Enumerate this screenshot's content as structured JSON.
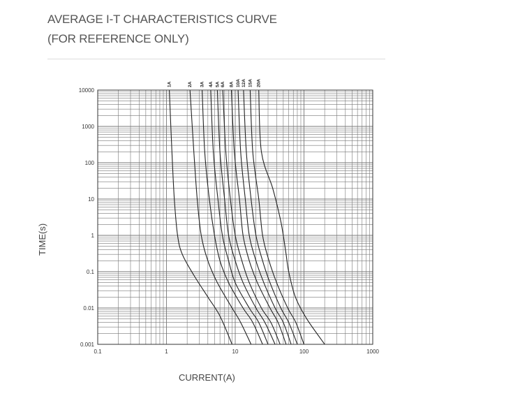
{
  "header": {
    "title_line1": "AVERAGE I-T CHARACTERISTICS CURVE",
    "title_line2": "(FOR REFERENCE ONLY)"
  },
  "chart_data": {
    "type": "line",
    "title": "AVERAGE I-T CHARACTERISTICS CURVE (FOR REFERENCE ONLY)",
    "xlabel": "CURRENT(A)",
    "ylabel": "TIME(s)",
    "xscale": "log",
    "yscale": "log",
    "xlim": [
      0.1,
      1000
    ],
    "ylim": [
      0.001,
      10000
    ],
    "x_ticks": [
      "0.1",
      "1",
      "10",
      "100",
      "1000"
    ],
    "y_ticks": [
      "0.001",
      "0.01",
      "0.1",
      "1",
      "10",
      "100",
      "1000",
      "10000"
    ],
    "grid": true,
    "line_color": "#222222",
    "grid_color": "#777777",
    "series": [
      {
        "name": "1A",
        "points": [
          [
            1.1,
            10000
          ],
          [
            1.2,
            200
          ],
          [
            1.3,
            10
          ],
          [
            1.45,
            1
          ],
          [
            1.7,
            0.3
          ],
          [
            2.5,
            0.08
          ],
          [
            4,
            0.02
          ],
          [
            6,
            0.006
          ],
          [
            9,
            0.001
          ]
        ]
      },
      {
        "name": "2A",
        "points": [
          [
            2.2,
            10000
          ],
          [
            2.5,
            200
          ],
          [
            2.8,
            10
          ],
          [
            3.2,
            1
          ],
          [
            4,
            0.2
          ],
          [
            5.5,
            0.05
          ],
          [
            9,
            0.01
          ],
          [
            12,
            0.004
          ],
          [
            17,
            0.001
          ]
        ]
      },
      {
        "name": "3A",
        "points": [
          [
            3.3,
            10000
          ],
          [
            3.6,
            200
          ],
          [
            4.2,
            10
          ],
          [
            5,
            1
          ],
          [
            6,
            0.2
          ],
          [
            8,
            0.05
          ],
          [
            13,
            0.01
          ],
          [
            18,
            0.004
          ],
          [
            25,
            0.001
          ]
        ]
      },
      {
        "name": "4A",
        "points": [
          [
            4.4,
            10000
          ],
          [
            4.8,
            200
          ],
          [
            5.6,
            10
          ],
          [
            6.5,
            1
          ],
          [
            8,
            0.2
          ],
          [
            10,
            0.05
          ],
          [
            16,
            0.01
          ],
          [
            22,
            0.004
          ],
          [
            30,
            0.001
          ]
        ]
      },
      {
        "name": "5A",
        "points": [
          [
            5.5,
            10000
          ],
          [
            6,
            200
          ],
          [
            7,
            10
          ],
          [
            8,
            1
          ],
          [
            10,
            0.2
          ],
          [
            13,
            0.05
          ],
          [
            20,
            0.01
          ],
          [
            27,
            0.004
          ],
          [
            38,
            0.001
          ]
        ]
      },
      {
        "name": "6A",
        "points": [
          [
            6.6,
            10000
          ],
          [
            7.3,
            200
          ],
          [
            8.5,
            10
          ],
          [
            10,
            1
          ],
          [
            12.5,
            0.2
          ],
          [
            16,
            0.05
          ],
          [
            24,
            0.01
          ],
          [
            33,
            0.004
          ],
          [
            45,
            0.001
          ]
        ]
      },
      {
        "name": "8A",
        "points": [
          [
            8.8,
            10000
          ],
          [
            9.7,
            200
          ],
          [
            11.5,
            10
          ],
          [
            13,
            1
          ],
          [
            16,
            0.2
          ],
          [
            21,
            0.05
          ],
          [
            32,
            0.01
          ],
          [
            42,
            0.004
          ],
          [
            55,
            0.001
          ]
        ]
      },
      {
        "name": "10A",
        "points": [
          [
            11,
            10000
          ],
          [
            12,
            200
          ],
          [
            14,
            10
          ],
          [
            16,
            1
          ],
          [
            20,
            0.2
          ],
          [
            26,
            0.05
          ],
          [
            38,
            0.01
          ],
          [
            50,
            0.004
          ],
          [
            65,
            0.001
          ]
        ]
      },
      {
        "name": "12A",
        "points": [
          [
            13.2,
            10000
          ],
          [
            14.5,
            200
          ],
          [
            17,
            10
          ],
          [
            20,
            1
          ],
          [
            25,
            0.2
          ],
          [
            32,
            0.05
          ],
          [
            46,
            0.01
          ],
          [
            60,
            0.004
          ],
          [
            80,
            0.001
          ]
        ]
      },
      {
        "name": "15A",
        "points": [
          [
            16.5,
            10000
          ],
          [
            18,
            200
          ],
          [
            22,
            10
          ],
          [
            25,
            1
          ],
          [
            31,
            0.2
          ],
          [
            40,
            0.05
          ],
          [
            58,
            0.01
          ],
          [
            76,
            0.004
          ],
          [
            100,
            0.001
          ]
        ]
      },
      {
        "name": "20A",
        "points": [
          [
            22,
            10000
          ],
          [
            24,
            200
          ],
          [
            35,
            20
          ],
          [
            45,
            3
          ],
          [
            50,
            1
          ],
          [
            55,
            0.3
          ],
          [
            60,
            0.1
          ],
          [
            75,
            0.02
          ],
          [
            110,
            0.005
          ],
          [
            200,
            0.001
          ]
        ]
      }
    ]
  }
}
